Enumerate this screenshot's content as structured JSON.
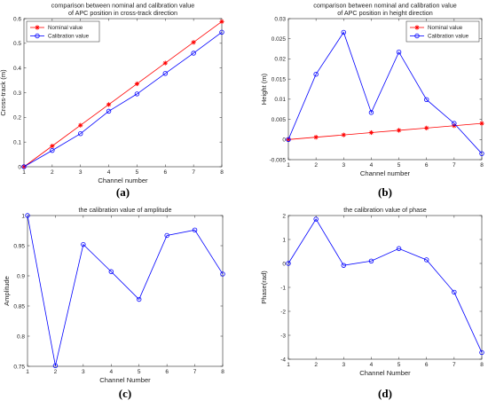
{
  "chart_data": [
    {
      "type": "line",
      "panel_label": "(a)",
      "title": [
        "comparison between nominal and calibration value",
        "of APC position in cross-track direction"
      ],
      "xlabel": "Channel number",
      "ylabel": "Cross-track (m)",
      "x": [
        1,
        2,
        3,
        4,
        5,
        6,
        7,
        8
      ],
      "xlim": [
        1,
        8
      ],
      "ylim": [
        0,
        0.6
      ],
      "xticks": [
        1,
        2,
        3,
        4,
        5,
        6,
        7,
        8
      ],
      "yticks": [
        0,
        0.1,
        0.2,
        0.3,
        0.4,
        0.5,
        0.6
      ],
      "ytick_labels": [
        "0",
        "0.1",
        "0.2",
        "0.3",
        "0.4",
        "0.5",
        "0.6"
      ],
      "legend_position": "top-left",
      "series": [
        {
          "name": "Nominal value",
          "color": "#ff0000",
          "marker": "star",
          "values": [
            0,
            0.084,
            0.168,
            0.252,
            0.336,
            0.42,
            0.504,
            0.588
          ]
        },
        {
          "name": "Calibration value",
          "color": "#0000ff",
          "marker": "circle",
          "values": [
            0,
            0.066,
            0.134,
            0.225,
            0.295,
            0.378,
            0.46,
            0.545
          ]
        }
      ]
    },
    {
      "type": "line",
      "panel_label": "(b)",
      "title": [
        "comparison between nominal and calibration value",
        "of APC position in height direction"
      ],
      "xlabel": "Channel number",
      "ylabel": "Height (m)",
      "x": [
        1,
        2,
        3,
        4,
        5,
        6,
        7,
        8
      ],
      "xlim": [
        1,
        8
      ],
      "ylim": [
        -0.005,
        0.03
      ],
      "xticks": [
        1,
        2,
        3,
        4,
        5,
        6,
        7,
        8
      ],
      "yticks": [
        -0.005,
        0,
        0.005,
        0.01,
        0.015,
        0.02,
        0.025,
        0.03
      ],
      "ytick_labels": [
        "-0.005",
        "0",
        "0.005",
        "0.01",
        "0.015",
        "0.02",
        "0.025",
        "0.03"
      ],
      "legend_position": "top-right",
      "series": [
        {
          "name": "Nominal value",
          "color": "#ff0000",
          "marker": "star",
          "values": [
            0,
            0.00057,
            0.00114,
            0.00171,
            0.00228,
            0.00285,
            0.00342,
            0.00399
          ]
        },
        {
          "name": "Calibration value",
          "color": "#0000ff",
          "marker": "circle",
          "values": [
            0,
            0.0162,
            0.0266,
            0.0067,
            0.0217,
            0.0099,
            0.004,
            -0.0035
          ]
        }
      ]
    },
    {
      "type": "line",
      "panel_label": "(c)",
      "title": [
        "the calibration value of amplitude"
      ],
      "xlabel": "Channel Number",
      "ylabel": "Amplitude",
      "x": [
        1,
        2,
        3,
        4,
        5,
        6,
        7,
        8
      ],
      "xlim": [
        1,
        8
      ],
      "ylim": [
        0.75,
        1
      ],
      "xticks": [
        1,
        2,
        3,
        4,
        5,
        6,
        7,
        8
      ],
      "yticks": [
        0.75,
        0.8,
        0.85,
        0.9,
        0.95,
        1
      ],
      "ytick_labels": [
        "0.75",
        "0.8",
        "0.85",
        "0.9",
        "0.95",
        "1"
      ],
      "series": [
        {
          "color": "#0000ff",
          "marker": "circle",
          "values": [
            1.0,
            0.751,
            0.952,
            0.907,
            0.861,
            0.967,
            0.976,
            0.903
          ]
        }
      ]
    },
    {
      "type": "line",
      "panel_label": "(d)",
      "title": [
        "the calibration value of phase"
      ],
      "xlabel": "Channel Number",
      "ylabel": "Phase(rad)",
      "x": [
        1,
        2,
        3,
        4,
        5,
        6,
        7,
        8
      ],
      "xlim": [
        1,
        8
      ],
      "ylim": [
        -4,
        2
      ],
      "xticks": [
        1,
        2,
        3,
        4,
        5,
        6,
        7,
        8
      ],
      "yticks": [
        -4,
        -3,
        -2,
        -1,
        0,
        1,
        2
      ],
      "ytick_labels": [
        "-4",
        "-3",
        "-2",
        "-1",
        "0",
        "1",
        "2"
      ],
      "series": [
        {
          "color": "#0000ff",
          "marker": "circle",
          "values": [
            0,
            1.85,
            -0.08,
            0.1,
            0.62,
            0.15,
            -1.2,
            -3.72
          ]
        }
      ]
    }
  ]
}
